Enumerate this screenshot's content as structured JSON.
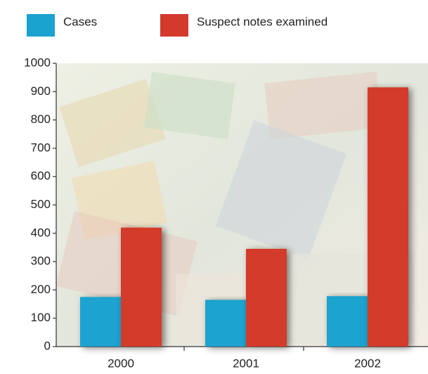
{
  "chart_data": {
    "type": "bar",
    "categories": [
      "2000",
      "2001",
      "2002"
    ],
    "series": [
      {
        "name": "Cases",
        "color": "#1aa3cf",
        "values": [
          175,
          165,
          178
        ]
      },
      {
        "name": "Suspect notes examined",
        "color": "#d33a2c",
        "values": [
          420,
          345,
          915
        ]
      }
    ],
    "ylim": [
      0,
      1000
    ],
    "yticks": [
      0,
      100,
      200,
      300,
      400,
      500,
      600,
      700,
      800,
      900,
      1000
    ]
  }
}
